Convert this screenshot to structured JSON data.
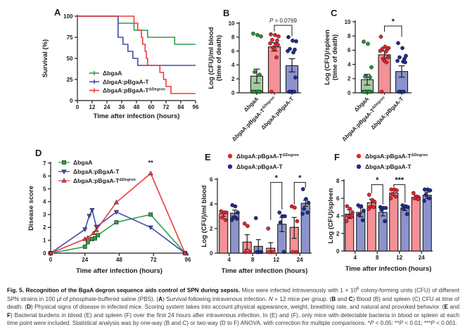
{
  "figure": {
    "caption": [
      {
        "b": 1,
        "t": "Fig. 5. Recognition of the BgaA degron sequence aids control of SPN during sepsis."
      },
      {
        "t": " Mice were infected intravenously with 1 × 10"
      },
      {
        "sup": 1,
        "t": "6"
      },
      {
        "t": " colony-forming units (CFU) of different SPN strains in 100 μl of phosphate-buffered saline (PBS). ("
      },
      {
        "b": 1,
        "t": "A"
      },
      {
        "t": ") Survival following intravenous infection. "
      },
      {
        "i": 1,
        "t": "N"
      },
      {
        "t": " = 12 mice per group. ("
      },
      {
        "b": 1,
        "t": "B"
      },
      {
        "t": " and "
      },
      {
        "b": 1,
        "t": "C"
      },
      {
        "t": ") Blood (B) and spleen (C) CFU at time of death. ("
      },
      {
        "b": 1,
        "t": "D"
      },
      {
        "t": ") Physical signs of disease in infected mice. Scoring system takes into account physical appearance, weight, breathing rate, and natural and provoked behavior. ("
      },
      {
        "b": 1,
        "t": "E"
      },
      {
        "t": " and "
      },
      {
        "b": 1,
        "t": "F"
      },
      {
        "t": ") Bacterial burdens in blood (E) and spleen (F) over the first 24 hours after intravenous infection. In (E) and (F), only mice with detectable bacteria in blood or spleen at each time point were included. Statistical analysis was by one-way (B and C) or two-way (D to F) ANOVA, with correction for multiple comparisons. *"
      },
      {
        "i": 1,
        "t": "P"
      },
      {
        "t": " < 0.05: **"
      },
      {
        "i": 1,
        "t": "P"
      },
      {
        "t": " < 0.01; ***"
      },
      {
        "i": 1,
        "t": "P"
      },
      {
        "t": " < 0.001."
      }
    ]
  },
  "colors": {
    "green": "#2f9e44",
    "greenFill": "#a5c9a1",
    "greenPoint": "#2a8f3a",
    "red": "#ee3a3e",
    "redFill": "#f59196",
    "redPoint": "#e8232b",
    "blue": "#414cae",
    "blueFill": "#8c93cc",
    "bluePoint": "#222a8e",
    "axis": "#1c1c1c"
  },
  "chart_data": [
    {
      "panel": "A",
      "type": "line",
      "subtype": "survival-step",
      "xlabel": "Time after infection (hours)",
      "ylabel": "Survival (%)",
      "xlim": [
        0,
        96
      ],
      "xticks": [
        0,
        12,
        24,
        36,
        48,
        60,
        72,
        84,
        96
      ],
      "ylim": [
        0,
        100
      ],
      "yticks": [
        0,
        25,
        50,
        75,
        100
      ],
      "legend_position": "inside-bottom-left",
      "series": [
        {
          "name": "ΔbgaA",
          "sup": "",
          "color": "green",
          "steps": [
            [
              0,
              100
            ],
            [
              33,
              100
            ],
            [
              33,
              91.7
            ],
            [
              46,
              91.7
            ],
            [
              46,
              83.3
            ],
            [
              57,
              83.3
            ],
            [
              57,
              75
            ],
            [
              79,
              75
            ],
            [
              79,
              66.7
            ],
            [
              96,
              66.7
            ]
          ]
        },
        {
          "name": "ΔbgaA:pBgaA-T",
          "sup": "",
          "color": "blue",
          "steps": [
            [
              0,
              100
            ],
            [
              33,
              100
            ],
            [
              33,
              75
            ],
            [
              37,
              75
            ],
            [
              37,
              66.7
            ],
            [
              41,
              66.7
            ],
            [
              41,
              58.3
            ],
            [
              45,
              58.3
            ],
            [
              45,
              50
            ],
            [
              49,
              50
            ],
            [
              49,
              41.7
            ],
            [
              96,
              41.7
            ]
          ]
        },
        {
          "name": "ΔbgaA:pBgaA-T",
          "sup": "ΔDegron",
          "color": "red",
          "steps": [
            [
              0,
              100
            ],
            [
              46,
              100
            ],
            [
              46,
              91.7
            ],
            [
              49,
              91.7
            ],
            [
              49,
              83.3
            ],
            [
              52,
              83.3
            ],
            [
              52,
              75
            ],
            [
              53,
              75
            ],
            [
              53,
              66.7
            ],
            [
              55,
              66.7
            ],
            [
              55,
              58.3
            ],
            [
              56,
              58.3
            ],
            [
              56,
              50
            ],
            [
              57,
              50
            ],
            [
              57,
              41.7
            ],
            [
              67,
              41.7
            ],
            [
              67,
              33.3
            ],
            [
              70,
              33.3
            ],
            [
              70,
              25
            ],
            [
              72,
              25
            ],
            [
              72,
              16.7
            ],
            [
              76,
              16.7
            ],
            [
              76,
              8.3
            ],
            [
              96,
              8.3
            ]
          ]
        }
      ]
    },
    {
      "panel": "B",
      "type": "bar",
      "ylabel": [
        "Log (CFU)/ml blood",
        "(time of death)"
      ],
      "ylim": [
        0,
        10
      ],
      "yticks": [
        0,
        2,
        4,
        6,
        8,
        10
      ],
      "bars": [
        {
          "label": "ΔbgaA",
          "sup": "",
          "color": "green",
          "mean": 2.4,
          "err_lo": 1.4,
          "err_hi": 3.4,
          "points": [
            8.5,
            8.3,
            8.1,
            3.0,
            2.6,
            0,
            0,
            0,
            0,
            0,
            0,
            0
          ]
        },
        {
          "label": "ΔbgaA:pBgaA-T",
          "sup": "ΔDegron",
          "color": "red",
          "mean": 6.6,
          "err_lo": 6.0,
          "err_hi": 7.2,
          "points": [
            8.4,
            8.3,
            8.1,
            7.6,
            7.5,
            7.1,
            7.0,
            6.9,
            6.5,
            6.3,
            5.1,
            0
          ]
        },
        {
          "label": "ΔbgaA:pBgaA-T",
          "sup": "",
          "color": "blue",
          "mean": 3.9,
          "err_lo": 3.0,
          "err_hi": 4.9,
          "points": [
            8.0,
            7.5,
            7.4,
            6.3,
            6.2,
            6.0,
            5.8,
            2.2,
            0,
            0,
            0,
            0
          ]
        }
      ],
      "bracket": {
        "from": 1,
        "to": 2,
        "p_italic": "P",
        "p_rest": " = 0.0769",
        "y": 9.7,
        "leg_from": 0.9,
        "leg_to": 1.55
      }
    },
    {
      "panel": "C",
      "type": "bar",
      "ylabel": [
        "Log (CFU)/spleen",
        "(time of death)"
      ],
      "ylim": [
        0,
        10
      ],
      "yticks": [
        0,
        2,
        4,
        6,
        8,
        10
      ],
      "bars": [
        {
          "label": "ΔbgaA",
          "sup": "",
          "color": "green",
          "mean": 1.85,
          "err_lo": 1.1,
          "err_hi": 2.6,
          "points": [
            7.2,
            6.9,
            3.6,
            2.3,
            2.2,
            0,
            0,
            0,
            0,
            0,
            0,
            0
          ]
        },
        {
          "label": "ΔbgaA:pBgaA-T",
          "sup": "ΔDegron",
          "color": "red",
          "mean": 5.35,
          "err_lo": 4.85,
          "err_hi": 5.9,
          "points": [
            7.9,
            6.5,
            6.3,
            6.2,
            6.1,
            5.9,
            5.8,
            5.0,
            4.8,
            4.5,
            4.3,
            0
          ]
        },
        {
          "label": "ΔbgaA:pBgaA-T",
          "sup": "",
          "color": "blue",
          "mean": 3.0,
          "err_lo": 2.2,
          "err_hi": 3.8,
          "points": [
            7.0,
            6.3,
            5.2,
            5.0,
            4.8,
            4.5,
            4.4,
            4.3,
            0,
            0,
            0,
            0
          ]
        }
      ],
      "bracket": {
        "from": 1,
        "to": 2,
        "stars": "*",
        "y": 9.4,
        "leg_from": 0.8,
        "leg_to": 1.5
      }
    },
    {
      "panel": "D",
      "type": "line",
      "subtype": "markers",
      "xlabel": "Time after infection (hours)",
      "ylabel": "Disease score",
      "xlim": [
        0,
        96
      ],
      "xticks": [
        0,
        24,
        48,
        72,
        96
      ],
      "ylim": [
        0,
        7
      ],
      "yticks": [
        0,
        1,
        2,
        3,
        4,
        5,
        6,
        7
      ],
      "legend_position": "inside-top-left",
      "series": [
        {
          "name": "ΔbgaA",
          "sup": "",
          "color": "green",
          "marker": "square",
          "x": [
            0,
            24,
            26,
            29,
            31,
            33,
            46,
            70,
            94
          ],
          "y": [
            0,
            0.5,
            0.85,
            1.1,
            1.15,
            1.4,
            2.4,
            3.0,
            0
          ]
        },
        {
          "name": "ΔbgaA:pBgaA-T",
          "sup": "",
          "color": "blue",
          "marker": "triangle-down",
          "x": [
            0,
            24,
            27,
            29,
            32,
            46,
            70,
            94
          ],
          "y": [
            0,
            1.85,
            2.9,
            3.35,
            2.05,
            3.2,
            2.0,
            0
          ]
        },
        {
          "name": "ΔbgaA:pBgaA-T",
          "sup": "ΔDegron",
          "color": "red",
          "marker": "triangle-up",
          "x": [
            0,
            24,
            26,
            30,
            32,
            46,
            70,
            94
          ],
          "y": [
            0,
            1.1,
            1.2,
            1.55,
            1.8,
            3.95,
            6.2,
            0
          ]
        }
      ],
      "annotation": {
        "text": "**",
        "x": 70,
        "y": 6.85
      }
    },
    {
      "panel": "E",
      "type": "bar",
      "grouped": true,
      "categories": [
        "4",
        "8",
        "12",
        "24"
      ],
      "xlabel": "Time after infection (hours)",
      "ylabel": [
        "Log (CFU)/ml blood"
      ],
      "ylim": [
        0,
        6
      ],
      "yticks": [
        0,
        2,
        4,
        6
      ],
      "legend_position": "above",
      "series": [
        {
          "name": "ΔbgaA:pBgaA-T",
          "sup": "ΔDegron",
          "color": "red",
          "means": [
            3.2,
            0.9,
            0.4,
            2.1
          ],
          "err_lo": [
            3.0,
            0.3,
            0.05,
            1.2
          ],
          "err_hi": [
            3.4,
            1.5,
            0.85,
            2.9
          ],
          "points": [
            [
              3.4,
              3.3,
              3.3,
              2.9,
              2.7
            ],
            [
              2.4,
              2.2,
              0,
              0
            ],
            [
              2.0,
              0,
              0,
              0
            ],
            [
              3.8,
              3.7,
              2.6,
              0,
              0
            ]
          ]
        },
        {
          "name": "ΔbgaA:pBgaA-T",
          "sup": "",
          "color": "blue",
          "means": [
            3.25,
            0.55,
            2.35,
            4.05
          ],
          "err_lo": [
            3.0,
            0.1,
            1.75,
            3.8
          ],
          "err_hi": [
            3.5,
            1.1,
            2.9,
            4.3
          ],
          "points": [
            [
              3.9,
              3.8,
              3.3,
              2.9,
              2.8,
              2.7
            ],
            [
              2.85,
              0,
              0,
              0
            ],
            [
              3.3,
              3.0,
              3.0,
              2.5,
              0.1
            ],
            [
              5.2,
              4.4,
              4.1,
              3.6,
              3.3,
              3.2
            ]
          ]
        }
      ],
      "brackets": [
        {
          "group": 2,
          "label": "*",
          "y": 5.75,
          "leg_left": 3.05,
          "leg_right": 2.2
        },
        {
          "group": 3,
          "label": "*",
          "y": 5.75,
          "leg_left": 1.8,
          "leg_right": 0.45
        }
      ]
    },
    {
      "panel": "F",
      "type": "bar",
      "grouped": true,
      "categories": [
        "4",
        "8",
        "12",
        "24"
      ],
      "xlabel": "Time after infection (hours)",
      "ylabel": [
        "Log (CFU)/spleen"
      ],
      "ylim": [
        0,
        8
      ],
      "yticks": [
        0,
        2,
        4,
        6,
        8
      ],
      "legend_position": "above",
      "series": [
        {
          "name": "ΔbgaA:pBgaA-T",
          "sup": "ΔDegron",
          "color": "red",
          "means": [
            4.2,
            5.5,
            6.6,
            6.1
          ],
          "err_lo": [
            3.7,
            5.1,
            6.3,
            5.9
          ],
          "err_hi": [
            4.7,
            5.9,
            6.9,
            6.35
          ],
          "points": [
            [
              5.1,
              4.8,
              4.4,
              4.0,
              3.9,
              3.4
            ],
            [
              6.4,
              5.8,
              5.6,
              5.0,
              5.0,
              4.8
            ],
            [
              7.0,
              7.0,
              6.9,
              6.5,
              6.2,
              6.0
            ],
            [
              6.6,
              6.2,
              6.1,
              6.0,
              5.9
            ]
          ]
        },
        {
          "name": "ΔbgaA:pBgaA-T",
          "sup": "",
          "color": "blue",
          "means": [
            4.4,
            4.4,
            4.9,
            6.35
          ],
          "err_lo": [
            3.9,
            4.0,
            4.6,
            6.0
          ],
          "err_hi": [
            4.9,
            4.8,
            5.2,
            6.7
          ],
          "points": [
            [
              5.2,
              5.1,
              4.6,
              4.1,
              3.5
            ],
            [
              5.0,
              4.9,
              4.9,
              4.7,
              3.4
            ],
            [
              5.2,
              5.1,
              5.0,
              4.8,
              4.2
            ],
            [
              7.0,
              7.0,
              6.9,
              6.4,
              6.0,
              5.7
            ]
          ]
        }
      ],
      "brackets": [
        {
          "group": 1,
          "label": "*",
          "y": 7.55,
          "leg_left": 1.0,
          "leg_right": 2.25
        },
        {
          "group": 2,
          "label": "***",
          "y": 7.55,
          "leg_left": 0.3,
          "leg_right": 2.05
        }
      ]
    }
  ]
}
